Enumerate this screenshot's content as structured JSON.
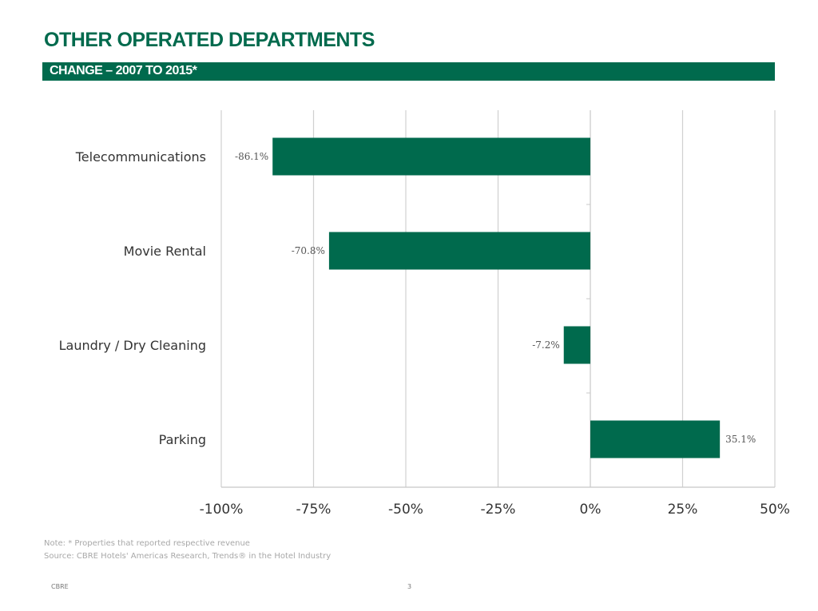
{
  "slide": {
    "title": "OTHER OPERATED DEPARTMENTS",
    "subtitle": "CHANGE – 2007 TO 2015*",
    "note": "Note: * Properties that reported respective revenue",
    "source": "Source: CBRE Hotels' Americas Research, Trends® in the Hotel Industry",
    "footer_brand": "CBRE",
    "page_number": "3"
  },
  "chart_data": {
    "type": "bar",
    "orientation": "horizontal",
    "categories": [
      "Telecommunications",
      "Movie Rental",
      "Laundry / Dry Cleaning",
      "Parking"
    ],
    "values": [
      -86.1,
      -70.8,
      -7.2,
      35.1
    ],
    "data_labels": [
      "-86.1%",
      "-70.8%",
      "-7.2%",
      "35.1%"
    ],
    "xlim": [
      -100,
      50
    ],
    "xticks": [
      -100,
      -75,
      -50,
      -25,
      0,
      25,
      50
    ],
    "xtick_labels": [
      "-100%",
      "-75%",
      "-50%",
      "-25%",
      "0%",
      "25%",
      "50%"
    ],
    "grid": "vertical",
    "bar_color": "#006a4d"
  }
}
